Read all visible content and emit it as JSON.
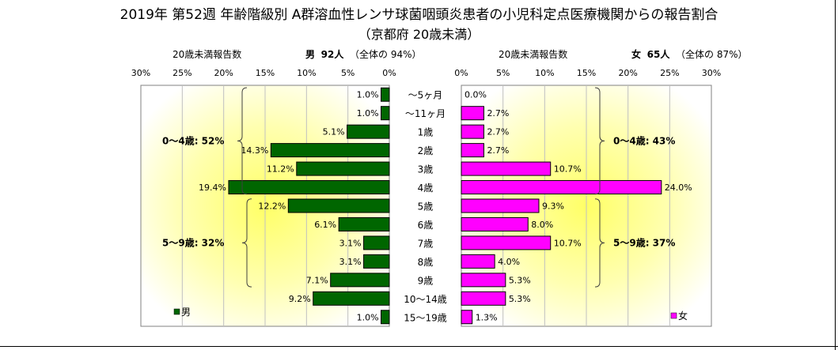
{
  "title": "2019年 第52週 年齢階級別 A群溶血性レンサ球菌咽頭炎患者の小児科定点医療機関からの報告割合",
  "subtitle": "（京都府 20歳未満）",
  "male_header": {
    "label": "20歳未満報告数",
    "sex": "男",
    "count": "92人",
    "share": "（全体の 94%）"
  },
  "female_header": {
    "label": "20歳未満報告数",
    "sex": "女",
    "count": "65人",
    "share": "（全体の 87%）"
  },
  "chart_data": {
    "type": "bar",
    "categories": [
      "～5ヶ月",
      "～11ヶ月",
      "1歳",
      "2歳",
      "3歳",
      "4歳",
      "5歳",
      "6歳",
      "7歳",
      "8歳",
      "9歳",
      "10～14歳",
      "15～19歳"
    ],
    "series": [
      {
        "name": "男",
        "values": [
          1.0,
          1.0,
          5.1,
          14.3,
          11.2,
          19.4,
          12.2,
          6.1,
          3.1,
          3.1,
          7.1,
          9.2,
          1.0
        ],
        "color": "#006600"
      },
      {
        "name": "女",
        "values": [
          0.0,
          2.7,
          2.7,
          2.7,
          10.7,
          24.0,
          9.3,
          8.0,
          10.7,
          4.0,
          5.3,
          5.3,
          1.3
        ],
        "color": "#FF00FF"
      }
    ],
    "value_labels_male": [
      "1.0%",
      "1.0%",
      "5.1%",
      "14.3%",
      "11.2%",
      "19.4%",
      "12.2%",
      "6.1%",
      "3.1%",
      "3.1%",
      "7.1%",
      "9.2%",
      "1.0%"
    ],
    "value_labels_female": [
      "0.0%",
      "2.7%",
      "2.7%",
      "2.7%",
      "10.7%",
      "24.0%",
      "9.3%",
      "8.0%",
      "10.7%",
      "4.0%",
      "5.3%",
      "5.3%",
      "1.3%"
    ],
    "male_ticks": [
      "30%",
      "25%",
      "20%",
      "15%",
      "10%",
      "5%",
      "0%"
    ],
    "female_ticks": [
      "0%",
      "5%",
      "10%",
      "15%",
      "20%",
      "25%",
      "30%"
    ],
    "xlim": [
      0,
      30
    ],
    "annotations": {
      "male_0_4": "0～4歳: 52%",
      "male_5_9": "5～9歳: 32%",
      "female_0_4": "0～4歳: 43%",
      "female_5_9": "5～9歳: 37%"
    },
    "legend_male": "男",
    "legend_female": "女",
    "legend_position": "bottom",
    "grid": true
  }
}
